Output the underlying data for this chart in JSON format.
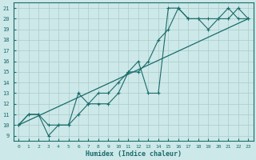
{
  "xlabel": "Humidex (Indice chaleur)",
  "bg_color": "#cde8e8",
  "grid_color": "#aacccc",
  "line_color": "#1a6b6b",
  "xlim": [
    -0.5,
    23.5
  ],
  "ylim": [
    8.5,
    21.5
  ],
  "xticks": [
    0,
    1,
    2,
    3,
    4,
    5,
    6,
    7,
    8,
    9,
    10,
    11,
    12,
    13,
    14,
    15,
    16,
    17,
    18,
    19,
    20,
    21,
    22,
    23
  ],
  "yticks": [
    9,
    10,
    11,
    12,
    13,
    14,
    15,
    16,
    17,
    18,
    19,
    20,
    21
  ],
  "line1_x": [
    0,
    1,
    2,
    3,
    4,
    5,
    6,
    7,
    8,
    9,
    10,
    11,
    12,
    13,
    14,
    15,
    16,
    17,
    18,
    19,
    20,
    21,
    22,
    23
  ],
  "line1_y": [
    10,
    11,
    11,
    10,
    10,
    10,
    13,
    12,
    12,
    12,
    13,
    15,
    16,
    13,
    13,
    21,
    21,
    20,
    20,
    19,
    20,
    21,
    20,
    20
  ],
  "line2_x": [
    0,
    1,
    2,
    3,
    4,
    5,
    6,
    7,
    8,
    9,
    10,
    11,
    12,
    13,
    14,
    15,
    16,
    17,
    18,
    19,
    20,
    21,
    22,
    23
  ],
  "line2_y": [
    10,
    11,
    11,
    9,
    10,
    10,
    11,
    12,
    13,
    13,
    14,
    15,
    15,
    16,
    18,
    19,
    21,
    20,
    20,
    20,
    20,
    20,
    21,
    20
  ],
  "line3_x": [
    0,
    23
  ],
  "line3_y": [
    10,
    20
  ]
}
